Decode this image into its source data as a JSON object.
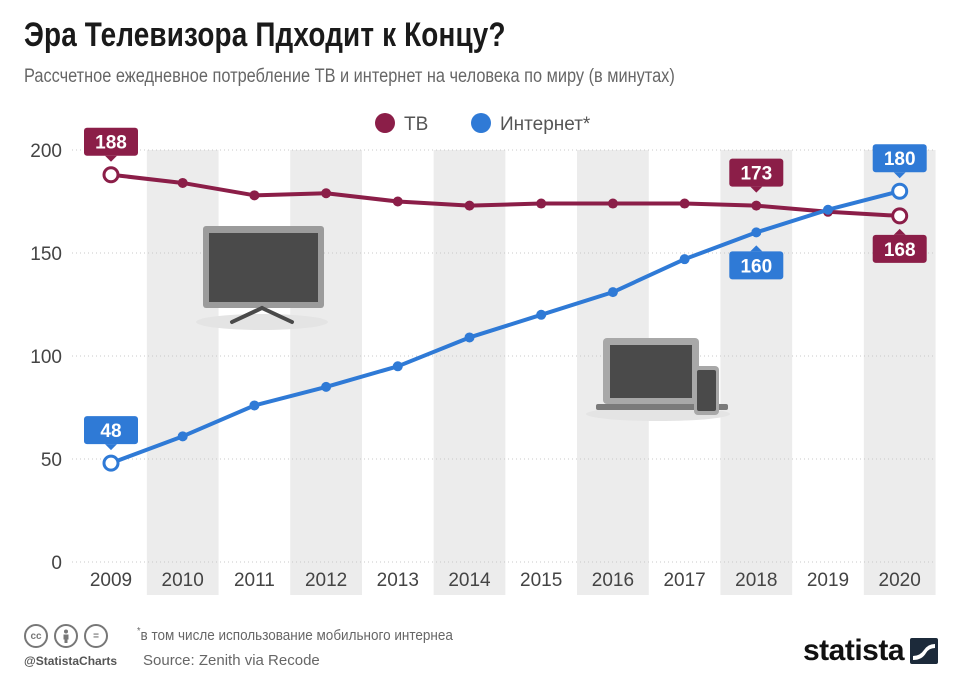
{
  "header": {
    "title": "Эра Телевизора Пдходит к Концу?",
    "subtitle": "Рассчетное ежедневное потребление ТВ и интернет на человека по миру (в минутах)"
  },
  "colors": {
    "tv": "#8b1e48",
    "internet": "#2f7ad6",
    "band": "#ececec",
    "grid": "#c9c9c9",
    "axis_text": "#444444"
  },
  "icons": {
    "tv": "television-icon",
    "internet": "laptop-phone-icon"
  },
  "chart_data": {
    "type": "line",
    "x": [
      "2009",
      "2010",
      "2011",
      "2012",
      "2013",
      "2014",
      "2015",
      "2016",
      "2017",
      "2018",
      "2019",
      "2020"
    ],
    "ylim": [
      0,
      200
    ],
    "yticks": [
      0,
      50,
      100,
      150,
      200
    ],
    "grid": true,
    "legend_position": "top-center",
    "series": [
      {
        "name": "ТВ",
        "values": [
          188,
          184,
          178,
          179,
          175,
          173,
          174,
          174,
          174,
          173,
          170,
          168
        ]
      },
      {
        "name": "Интернет*",
        "values": [
          48,
          61,
          76,
          85,
          95,
          109,
          120,
          131,
          147,
          160,
          171,
          180
        ]
      }
    ],
    "data_labels": [
      {
        "series": 0,
        "index": 0,
        "text": "188"
      },
      {
        "series": 0,
        "index": 9,
        "text": "173"
      },
      {
        "series": 0,
        "index": 11,
        "text": "168"
      },
      {
        "series": 1,
        "index": 0,
        "text": "48"
      },
      {
        "series": 1,
        "index": 9,
        "text": "160"
      },
      {
        "series": 1,
        "index": 11,
        "text": "180"
      }
    ]
  },
  "footer": {
    "note": "в том числе использование мобильного интернеа",
    "source": "Source: Zenith via Recode",
    "handle": "@StatistaCharts",
    "brand": "statista",
    "cc_icons": [
      "cc",
      "by",
      "="
    ]
  }
}
